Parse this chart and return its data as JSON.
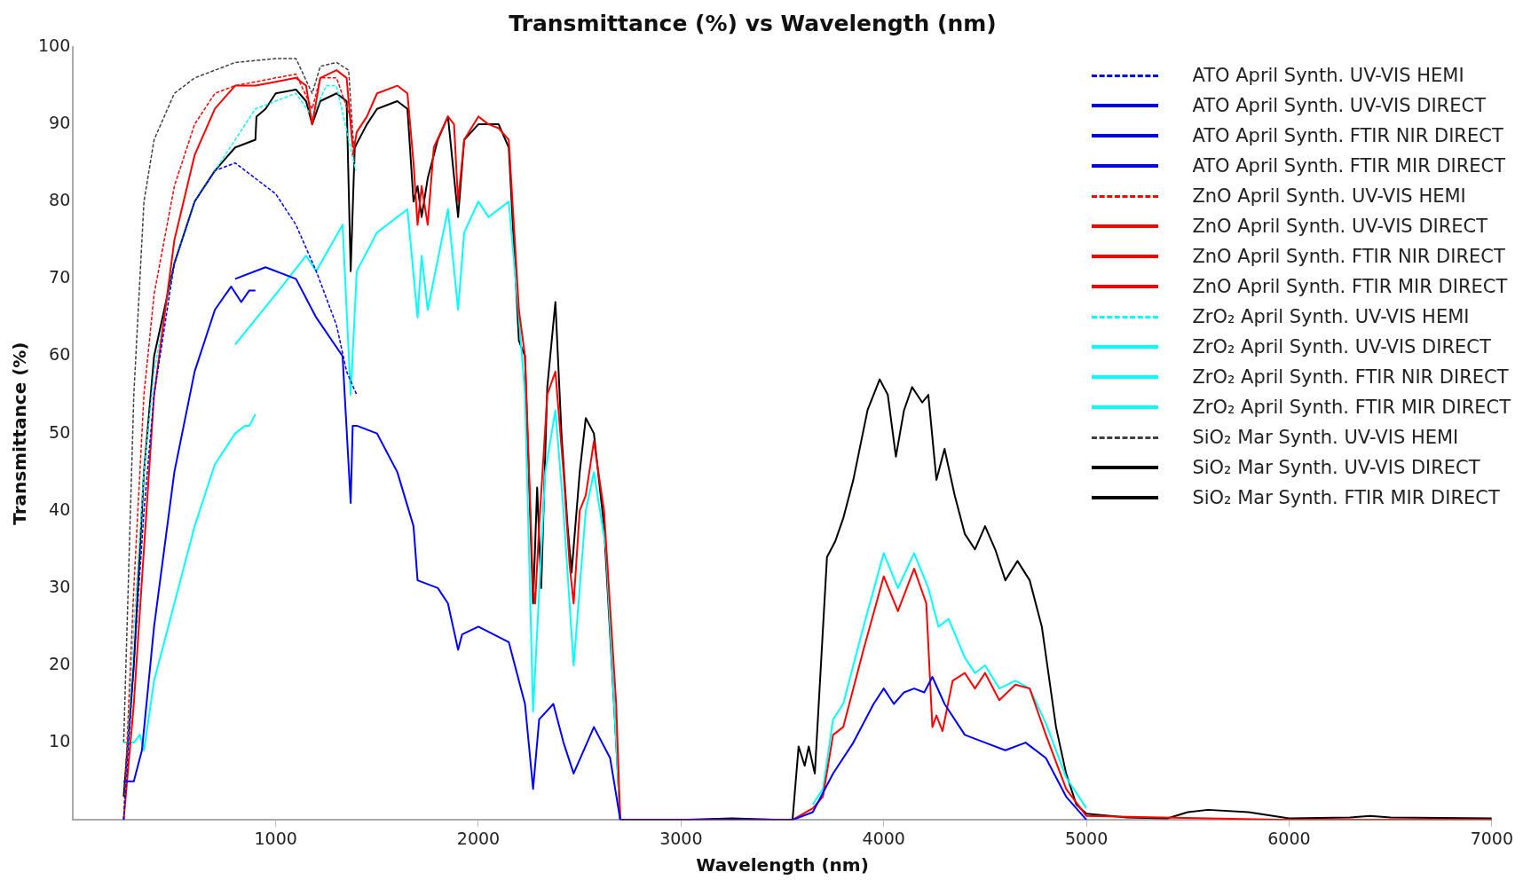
{
  "chart_data": {
    "type": "line",
    "title": "Transmittance (%) vs Wavelength (nm)",
    "xlabel": "Wavelength (nm)",
    "ylabel": "Transmittance (%)",
    "xlim": [
      0,
      7000
    ],
    "xticks": [
      1000,
      2000,
      3000,
      4000,
      5000,
      6000,
      7000
    ],
    "ylim": [
      0,
      100
    ],
    "yticks": [
      10,
      20,
      30,
      40,
      50,
      60,
      70,
      80,
      90,
      100
    ],
    "legend": "top right",
    "marker": "none",
    "series": [
      {
        "name": "ATO April Synth. UV-VIS HEMI",
        "color": "#0000ff",
        "line_style": "dashed",
        "x": [
          250,
          300,
          350,
          400,
          500,
          600,
          700,
          800,
          900,
          1000,
          1100,
          1200,
          1300,
          1350,
          1400
        ],
        "values": [
          0,
          20,
          40,
          55,
          72,
          80,
          84,
          85,
          83,
          81,
          77,
          71,
          64,
          58,
          55
        ]
      },
      {
        "name": "ATO April Synth. UV-VIS DIRECT",
        "color": "#0000ff",
        "x": [
          250,
          300,
          340,
          400,
          500,
          600,
          700,
          780,
          830,
          870,
          900
        ],
        "values": [
          5,
          5,
          9,
          25,
          45,
          58,
          66,
          69,
          67,
          68.5,
          68.5
        ]
      },
      {
        "name": "ATO April Synth. FTIR NIR DIRECT",
        "color": "#0000ff",
        "x": [
          800,
          950,
          1100,
          1200,
          1330,
          1370,
          1380,
          1400,
          1500,
          1600,
          1680,
          1700,
          1800,
          1850,
          1900,
          1920,
          2000,
          2150,
          2200,
          2230,
          2270,
          2300,
          2370,
          2420,
          2470,
          2570,
          2650,
          2700
        ],
        "values": [
          70,
          71.5,
          70,
          65,
          60,
          41,
          51,
          51,
          50,
          45,
          38,
          31,
          30,
          28,
          22,
          24,
          25,
          23,
          18,
          15,
          4,
          13,
          15,
          10,
          6,
          12,
          8,
          0
        ]
      },
      {
        "name": "ATO April Synth. FTIR MIR DIRECT",
        "color": "#0000ff",
        "x": [
          2700,
          3550,
          3650,
          3750,
          3850,
          3950,
          4000,
          4050,
          4100,
          4150,
          4200,
          4240,
          4300,
          4400,
          4500,
          4600,
          4700,
          4800,
          4900,
          5000
        ],
        "values": [
          0,
          0,
          1,
          6,
          10,
          15,
          17,
          15,
          16.5,
          17,
          16.5,
          18.5,
          15,
          11,
          10,
          9,
          10,
          8,
          3,
          0
        ]
      },
      {
        "name": "ZnO April Synth. UV-VIS HEMI",
        "color": "#ff0000",
        "line_style": "dashed",
        "x": [
          250,
          300,
          350,
          400,
          500,
          600,
          700,
          800,
          900,
          1000,
          1100,
          1180,
          1220,
          1300,
          1380
        ],
        "values": [
          0,
          30,
          55,
          68,
          82,
          90,
          94,
          95,
          95.5,
          96,
          96.5,
          92,
          96,
          96,
          90
        ]
      },
      {
        "name": "ZnO April Synth. UV-VIS DIRECT",
        "color": "#ff0000",
        "x": [
          250,
          300,
          350,
          400,
          500,
          600,
          700,
          800,
          900,
          1000,
          1100,
          1150,
          1180,
          1220,
          1300,
          1350,
          1380
        ],
        "values": [
          0,
          15,
          35,
          55,
          75,
          86,
          92,
          95,
          95,
          95.5,
          96,
          95,
          90,
          96,
          97,
          96,
          87
        ]
      },
      {
        "name": "ZnO April Synth. FTIR NIR DIRECT",
        "color": "#ff0000",
        "x": [
          1380,
          1400,
          1450,
          1500,
          1600,
          1650,
          1680,
          1700,
          1720,
          1750,
          1780,
          1850,
          1880,
          1900,
          1930,
          2000,
          2050,
          2100,
          2150,
          2200,
          2230,
          2270,
          2280,
          2300,
          2340,
          2380,
          2420,
          2450,
          2470,
          2500,
          2530,
          2570,
          2620,
          2680,
          2700
        ],
        "values": [
          86,
          89,
          91,
          94,
          95,
          94,
          85,
          77,
          82,
          77,
          87,
          91,
          90,
          80,
          88,
          91,
          90,
          89.5,
          88,
          66,
          60,
          30,
          28,
          38,
          55,
          58,
          45,
          33,
          28,
          40,
          42,
          49,
          40,
          15,
          0
        ]
      },
      {
        "name": "ZnO April Synth. FTIR MIR DIRECT",
        "color": "#ff0000",
        "x": [
          2700,
          3000,
          3550,
          3650,
          3700,
          3750,
          3800,
          3900,
          4000,
          4070,
          4150,
          4210,
          4240,
          4260,
          4290,
          4340,
          4400,
          4450,
          4500,
          4570,
          4650,
          4720,
          4800,
          4900,
          5000,
          6000,
          7000
        ],
        "values": [
          0,
          0,
          0,
          1.5,
          3,
          11,
          12,
          22,
          31.5,
          27,
          32.5,
          28,
          12,
          13.5,
          11.5,
          18,
          19,
          17,
          19,
          15.5,
          17.5,
          17,
          11,
          4,
          0.5,
          0,
          0
        ]
      },
      {
        "name": "ZrO₂ April Synth. UV-VIS HEMI",
        "color": "#00ffff",
        "line_style": "dashed",
        "x": [
          250,
          300,
          350,
          400,
          500,
          600,
          700,
          800,
          900,
          1000,
          1100,
          1180,
          1250,
          1300,
          1395
        ],
        "values": [
          0,
          25,
          45,
          58,
          72,
          80,
          84,
          88,
          92,
          93,
          94,
          91,
          95,
          95,
          84
        ]
      },
      {
        "name": "ZrO₂ April Synth. UV-VIS DIRECT",
        "color": "#00ffff",
        "x": [
          250,
          300,
          330,
          350,
          400,
          500,
          600,
          700,
          800,
          850,
          870,
          900
        ],
        "values": [
          10,
          10,
          11,
          9,
          18,
          28,
          38,
          46,
          50,
          51,
          51,
          52.5
        ]
      },
      {
        "name": "ZrO₂ April Synth. FTIR NIR DIRECT",
        "color": "#00ffff",
        "x": [
          800,
          1000,
          1150,
          1200,
          1330,
          1370,
          1400,
          1500,
          1650,
          1700,
          1720,
          1750,
          1850,
          1900,
          1930,
          2000,
          2050,
          2150,
          2200,
          2230,
          2270,
          2330,
          2380,
          2420,
          2470,
          2530,
          2570,
          2630,
          2700
        ],
        "values": [
          61.5,
          68,
          73,
          71,
          77,
          55,
          71,
          76,
          79,
          65,
          73,
          66,
          79,
          66,
          76,
          80,
          78,
          80,
          65,
          55,
          14,
          45,
          53,
          40,
          20,
          40,
          45,
          35,
          0
        ]
      },
      {
        "name": "ZrO₂ April Synth. FTIR MIR DIRECT",
        "color": "#00ffff",
        "x": [
          3650,
          3700,
          3750,
          3800,
          3900,
          4000,
          4070,
          4150,
          4220,
          4270,
          4320,
          4400,
          4450,
          4500,
          4570,
          4650,
          4720,
          4800,
          4900,
          5000
        ],
        "values": [
          2,
          4,
          13,
          15,
          25,
          34.5,
          30,
          34.5,
          30,
          25,
          26,
          21,
          19,
          20,
          17,
          18,
          17,
          12.5,
          5.5,
          1.5
        ]
      },
      {
        "name": "SiO₂ Mar Synth. UV-VIS HEMI",
        "color": "#404040",
        "line_style": "dashed",
        "x": [
          250,
          300,
          350,
          400,
          500,
          600,
          700,
          800,
          1000,
          1100,
          1180,
          1220,
          1300,
          1360,
          1390
        ],
        "values": [
          10,
          55,
          80,
          88,
          94,
          96,
          97,
          98,
          98.5,
          98.5,
          94,
          97.5,
          98,
          97,
          85
        ]
      },
      {
        "name": "SiO₂ Mar Synth. UV-VIS DIRECT",
        "color": "#000000",
        "x": [
          250,
          300,
          350,
          400,
          500,
          600,
          700,
          800,
          900,
          905,
          950,
          1000,
          1100,
          1150,
          1180,
          1220,
          1300,
          1350,
          1370,
          1390,
          1450,
          1500,
          1600,
          1650,
          1680,
          1700,
          1720,
          1750,
          1800,
          1850,
          1900,
          1930,
          2000,
          2100,
          2150,
          2200,
          2230,
          2270,
          2290,
          2310,
          2340,
          2380,
          2410,
          2440,
          2460,
          2500,
          2530,
          2570,
          2620,
          2680,
          2700
        ],
        "values": [
          3,
          20,
          45,
          60,
          72,
          80,
          84,
          87,
          88,
          91,
          92,
          94,
          94.5,
          93,
          90,
          93,
          94,
          93,
          71,
          87,
          90,
          92,
          93,
          92,
          80,
          82,
          78,
          83,
          88,
          91,
          78,
          88,
          90,
          90,
          87,
          62,
          60,
          28,
          43,
          30,
          56,
          67,
          50,
          38,
          32,
          45,
          52,
          50,
          38,
          10,
          0
        ]
      },
      {
        "name": "SiO₂ Mar Synth. FTIR MIR DIRECT",
        "color": "#000000",
        "x": [
          2700,
          3000,
          3250,
          3500,
          3550,
          3580,
          3610,
          3630,
          3660,
          3690,
          3720,
          3760,
          3800,
          3850,
          3920,
          3980,
          4020,
          4060,
          4100,
          4140,
          4190,
          4220,
          4260,
          4300,
          4350,
          4400,
          4450,
          4500,
          4550,
          4600,
          4660,
          4720,
          4780,
          4850,
          4900,
          4950,
          5000,
          5200,
          5400,
          5500,
          5600,
          5800,
          6000,
          6300,
          6400,
          6500,
          7000
        ],
        "values": [
          0,
          0,
          0.2,
          0,
          0,
          9.5,
          7,
          9.5,
          6,
          20,
          34,
          36,
          39,
          44,
          53,
          57,
          55,
          47,
          53,
          56,
          54,
          55,
          44,
          48,
          42,
          37,
          35,
          38,
          35,
          31,
          33.5,
          31,
          25,
          12,
          6,
          2,
          0.8,
          0.3,
          0.2,
          1,
          1.3,
          1,
          0.2,
          0.3,
          0.5,
          0.3,
          0.2
        ]
      }
    ]
  }
}
